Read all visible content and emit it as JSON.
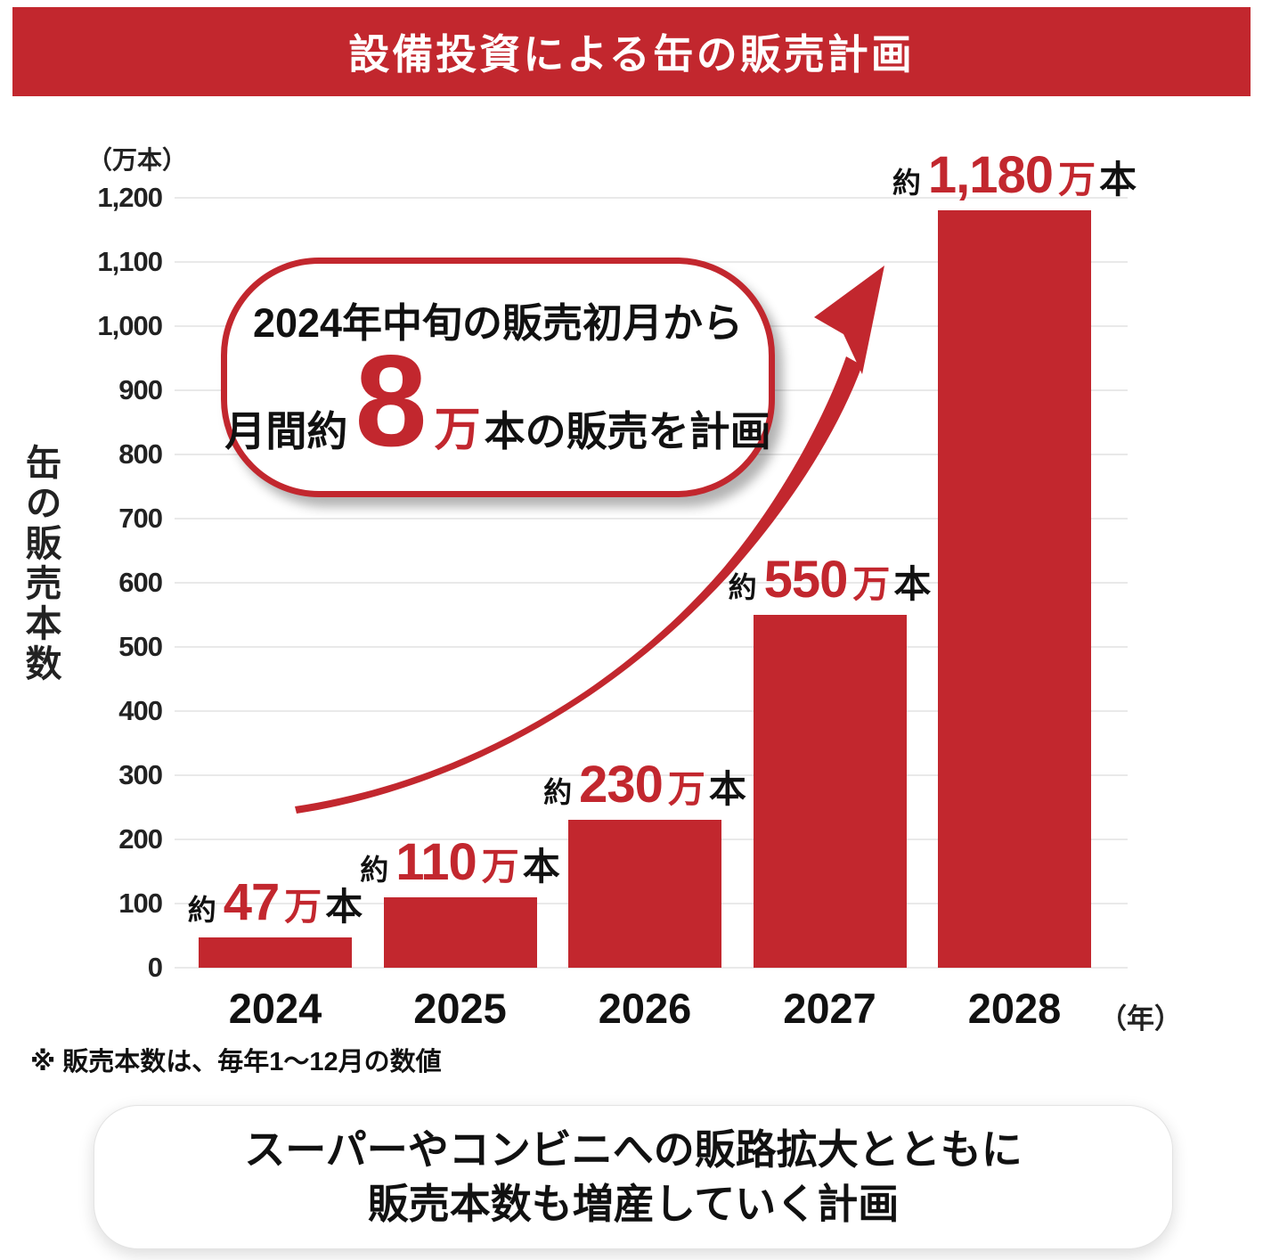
{
  "colors": {
    "red": "#C2272E",
    "grid": "#E9E9E9",
    "text": "#1A1A1A"
  },
  "banner": {
    "title": "設備投資による缶の販売計画"
  },
  "y_axis": {
    "unit_label": "（万本）",
    "title": "缶の販売本数",
    "ticks": [
      "1,200",
      "1,100",
      "1,000",
      "900",
      "800",
      "700",
      "600",
      "500",
      "400",
      "300",
      "200",
      "100",
      "0"
    ]
  },
  "x_axis": {
    "years": [
      "2024",
      "2025",
      "2026",
      "2027",
      "2028"
    ],
    "unit_label": "（年）"
  },
  "bars": [
    {
      "year": "2024",
      "value": 47,
      "label": {
        "approx": "約",
        "number": "47",
        "man": "万",
        "hon": "本"
      }
    },
    {
      "year": "2025",
      "value": 110,
      "label": {
        "approx": "約",
        "number": "110",
        "man": "万",
        "hon": "本"
      }
    },
    {
      "year": "2026",
      "value": 230,
      "label": {
        "approx": "約",
        "number": "230",
        "man": "万",
        "hon": "本"
      }
    },
    {
      "year": "2027",
      "value": 550,
      "label": {
        "approx": "約",
        "number": "550",
        "man": "万",
        "hon": "本"
      }
    },
    {
      "year": "2028",
      "value": 1180,
      "label": {
        "approx": "約",
        "number": "1,180",
        "man": "万",
        "hon": "本"
      }
    }
  ],
  "callout": {
    "line1": "2024年中旬の販売初月から",
    "line2_prefix": "月間約",
    "line2_number": "8",
    "line2_unit": "万",
    "line2_suffix": "本の販売を計画"
  },
  "footnote": "※ 販売本数は、毎年1〜12月の数値",
  "bottom_note": {
    "line1": "スーパーやコンビニへの販路拡大とともに",
    "line2": "販売本数も増産していく計画"
  },
  "chart_data": {
    "type": "bar",
    "title": "設備投資による缶の販売計画",
    "categories": [
      "2024",
      "2025",
      "2026",
      "2027",
      "2028"
    ],
    "values": [
      47,
      110,
      230,
      550,
      1180
    ],
    "unit": "万本",
    "xlabel": "年",
    "ylabel": "缶の販売本数",
    "ylim": [
      0,
      1200
    ],
    "ytick_interval": 100,
    "grid": true,
    "bar_color": "#C2272E",
    "value_labels": [
      "約47万本",
      "約110万本",
      "約230万本",
      "約550万本",
      "約1,180万本"
    ],
    "annotations": [
      "2024年中旬の販売初月から月間約8万本の販売を計画",
      "※ 販売本数は、毎年1〜12月の数値",
      "スーパーやコンビニへの販路拡大とともに販売本数も増産していく計画"
    ]
  }
}
